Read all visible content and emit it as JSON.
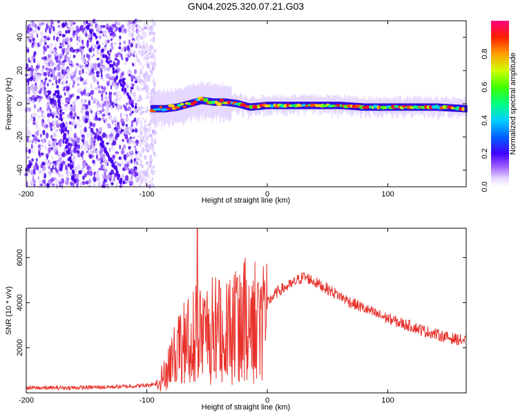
{
  "title": "GN04.2025.320.07.21.G03",
  "chart_data": [
    {
      "type": "heatmap",
      "xlabel": "Height of straight line (km)",
      "ylabel": "Frequency (Hz)",
      "xlim": [
        -200,
        165
      ],
      "ylim": [
        -50,
        50
      ],
      "xticks": [
        "-200",
        "-100",
        "0",
        "100"
      ],
      "xtick_values": [
        -200,
        -100,
        0,
        100
      ],
      "yticks": [
        "-40",
        "-20",
        "0",
        "20",
        "40"
      ],
      "ytick_values": [
        -40,
        -20,
        0,
        20,
        40
      ],
      "colorbar": {
        "label": "Normalized spectral amplitude",
        "range": [
          0,
          1
        ],
        "ticks": [
          "0.0",
          "0.2",
          "0.4",
          "0.6",
          "0.8"
        ],
        "tick_values": [
          0.0,
          0.2,
          0.4,
          0.6,
          0.8
        ]
      },
      "noise_region_x": [
        -200,
        -93
      ],
      "signal_trace": [
        {
          "x": -97,
          "y": -3
        },
        {
          "x": -85,
          "y": -3
        },
        {
          "x": -75,
          "y": -2
        },
        {
          "x": -65,
          "y": 0
        },
        {
          "x": -55,
          "y": 2
        },
        {
          "x": -45,
          "y": 1
        },
        {
          "x": -35,
          "y": 1
        },
        {
          "x": -25,
          "y": 0
        },
        {
          "x": -15,
          "y": -2
        },
        {
          "x": 0,
          "y": -1
        },
        {
          "x": 20,
          "y": -1
        },
        {
          "x": 40,
          "y": -1
        },
        {
          "x": 60,
          "y": -1
        },
        {
          "x": 80,
          "y": -2
        },
        {
          "x": 100,
          "y": -2
        },
        {
          "x": 120,
          "y": -2
        },
        {
          "x": 140,
          "y": -2
        },
        {
          "x": 165,
          "y": -3
        }
      ]
    },
    {
      "type": "line",
      "xlabel": "Height of straight line (km)",
      "ylabel": "SNR (10 * v/v)",
      "xlim": [
        -200,
        165
      ],
      "ylim": [
        0,
        7300
      ],
      "xticks": [
        "-200",
        "-100",
        "0",
        "100"
      ],
      "xtick_values": [
        -200,
        -100,
        0,
        100
      ],
      "yticks": [
        "2000",
        "4000",
        "6000"
      ],
      "ytick_values": [
        2000,
        4000,
        6000
      ],
      "color": "#e8302a",
      "series": [
        {
          "name": "SNR",
          "x": [
            -200,
            -180,
            -160,
            -140,
            -120,
            -100,
            -92,
            -85,
            -80,
            -75,
            -70,
            -65,
            -60,
            -58,
            -55,
            -50,
            -45,
            -40,
            -35,
            -30,
            -25,
            -20,
            -15,
            -10,
            -5,
            0,
            5,
            10,
            20,
            25,
            30,
            35,
            40,
            50,
            60,
            70,
            80,
            90,
            100,
            110,
            120,
            130,
            140,
            150,
            165
          ],
          "y": [
            220,
            220,
            230,
            250,
            280,
            330,
            420,
            900,
            1500,
            1900,
            2300,
            2500,
            2800,
            3500,
            2600,
            2900,
            3000,
            3100,
            3200,
            3300,
            3400,
            3500,
            3450,
            3600,
            3800,
            4000,
            4300,
            4550,
            4800,
            5000,
            5150,
            5050,
            4900,
            4600,
            4300,
            4000,
            3750,
            3500,
            3300,
            3100,
            2950,
            2750,
            2600,
            2450,
            2300
          ]
        }
      ],
      "spikes": [
        {
          "x": -58,
          "y": 7300
        },
        {
          "x": -40,
          "y": 5000
        },
        {
          "x": -25,
          "y": 5100
        },
        {
          "x": -5,
          "y": 4700
        }
      ]
    }
  ]
}
